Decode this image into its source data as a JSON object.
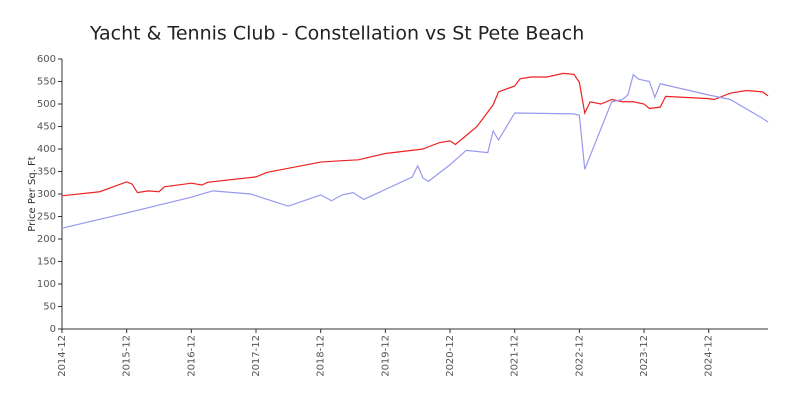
{
  "chart_data": {
    "type": "line",
    "title": "Yacht & Tennis Club - Constellation vs St Pete Beach",
    "y_label": "Price Per Sq. Ft",
    "xlim": [
      "2014-12",
      "2025-11"
    ],
    "xticks": [
      "2014-12",
      "2015-12",
      "2016-12",
      "2017-12",
      "2018-12",
      "2019-12",
      "2020-12",
      "2021-12",
      "2022-12",
      "2023-12",
      "2024-12"
    ],
    "ylim": [
      0,
      600
    ],
    "yticks": [
      0,
      50,
      100,
      150,
      200,
      250,
      300,
      350,
      400,
      450,
      500,
      550,
      600
    ],
    "series": [
      {
        "color": "#ee2222",
        "x": [
          "2014-12",
          "2015-07",
          "2015-12",
          "2016-01",
          "2016-02",
          "2016-04",
          "2016-06",
          "2016-07",
          "2016-12",
          "2017-02",
          "2017-03",
          "2017-12",
          "2018-02",
          "2018-12",
          "2019-04",
          "2019-07",
          "2019-12",
          "2020-07",
          "2020-08",
          "2020-10",
          "2020-12",
          "2021-01",
          "2021-03",
          "2021-05",
          "2021-08",
          "2021-09",
          "2021-12",
          "2022-01",
          "2022-03",
          "2022-06",
          "2022-09",
          "2022-11",
          "2022-12",
          "2023-01",
          "2023-02",
          "2023-04",
          "2023-06",
          "2023-08",
          "2023-10",
          "2023-12",
          "2024-01",
          "2024-03",
          "2024-04",
          "2024-12",
          "2025-01",
          "2025-04",
          "2025-07",
          "2025-10",
          "2025-11"
        ],
        "values": [
          296,
          305,
          327,
          322,
          303,
          307,
          305,
          316,
          324,
          320,
          326,
          338,
          348,
          371,
          374,
          376,
          390,
          400,
          405,
          414,
          418,
          410,
          430,
          450,
          498,
          527,
          540,
          556,
          560,
          560,
          568,
          566,
          548,
          480,
          505,
          500,
          510,
          505,
          505,
          500,
          490,
          493,
          517,
          512,
          510,
          524,
          530,
          527,
          518
        ]
      },
      {
        "color": "#9999ee",
        "x": [
          "2014-12",
          "2015-12",
          "2016-12",
          "2017-04",
          "2017-11",
          "2018-06",
          "2018-12",
          "2019-02",
          "2019-04",
          "2019-06",
          "2019-08",
          "2019-12",
          "2020-05",
          "2020-06",
          "2020-07",
          "2020-08",
          "2020-12",
          "2021-03",
          "2021-07",
          "2021-08",
          "2021-09",
          "2021-12",
          "2022-11",
          "2022-12",
          "2023-01",
          "2023-06",
          "2023-08",
          "2023-09",
          "2023-10",
          "2023-11",
          "2024-01",
          "2024-02",
          "2024-03",
          "2024-12",
          "2025-04",
          "2025-10",
          "2025-11"
        ],
        "values": [
          224,
          258,
          293,
          307,
          300,
          273,
          298,
          285,
          298,
          303,
          288,
          310,
          338,
          363,
          335,
          328,
          365,
          397,
          392,
          440,
          420,
          480,
          478,
          475,
          355,
          505,
          510,
          520,
          565,
          555,
          550,
          515,
          545,
          520,
          510,
          468,
          460
        ]
      }
    ]
  }
}
